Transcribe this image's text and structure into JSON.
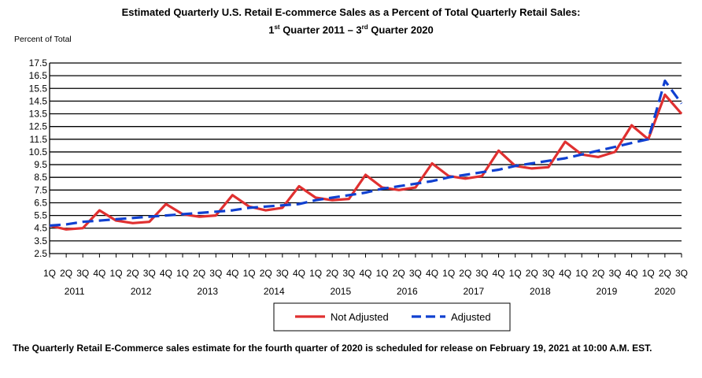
{
  "chart_data": {
    "type": "line",
    "title_line1": "Estimated Quarterly U.S. Retail E-commerce Sales as a Percent of Total Quarterly Retail Sales:",
    "title_line2": "1st Quarter 2011 – 3rd Quarter 2020",
    "ylabel": "Percent of Total",
    "ylim": [
      2.5,
      17.5
    ],
    "yticks": [
      2.5,
      3.5,
      4.5,
      5.5,
      6.5,
      7.5,
      8.5,
      9.5,
      10.5,
      11.5,
      12.5,
      13.5,
      14.5,
      15.5,
      16.5,
      17.5
    ],
    "grid": true,
    "quarter_labels": [
      "1Q",
      "2Q",
      "3Q",
      "4Q"
    ],
    "years": [
      "2011",
      "2012",
      "2013",
      "2014",
      "2015",
      "2016",
      "2017",
      "2018",
      "2019",
      "2020"
    ],
    "x": [
      "2011 Q1",
      "2011 Q2",
      "2011 Q3",
      "2011 Q4",
      "2012 Q1",
      "2012 Q2",
      "2012 Q3",
      "2012 Q4",
      "2013 Q1",
      "2013 Q2",
      "2013 Q3",
      "2013 Q4",
      "2014 Q1",
      "2014 Q2",
      "2014 Q3",
      "2014 Q4",
      "2015 Q1",
      "2015 Q2",
      "2015 Q3",
      "2015 Q4",
      "2016 Q1",
      "2016 Q2",
      "2016 Q3",
      "2016 Q4",
      "2017 Q1",
      "2017 Q2",
      "2017 Q3",
      "2017 Q4",
      "2018 Q1",
      "2018 Q2",
      "2018 Q3",
      "2018 Q4",
      "2019 Q1",
      "2019 Q2",
      "2019 Q3",
      "2019 Q4",
      "2020 Q1",
      "2020 Q2",
      "2020 Q3"
    ],
    "series": [
      {
        "name": "Not Adjusted",
        "color": "#e03030",
        "style": "solid",
        "values": [
          4.7,
          4.4,
          4.5,
          5.9,
          5.1,
          4.9,
          5.0,
          6.4,
          5.6,
          5.4,
          5.5,
          7.1,
          6.2,
          5.9,
          6.1,
          7.8,
          6.9,
          6.7,
          6.8,
          8.7,
          7.7,
          7.5,
          7.7,
          9.6,
          8.6,
          8.4,
          8.6,
          10.6,
          9.4,
          9.2,
          9.3,
          11.3,
          10.3,
          10.1,
          10.5,
          12.6,
          11.5,
          15.0,
          13.5
        ]
      },
      {
        "name": "Adjusted",
        "color": "#1040d0",
        "style": "dashed",
        "values": [
          4.7,
          4.8,
          5.0,
          5.1,
          5.2,
          5.3,
          5.4,
          5.5,
          5.6,
          5.7,
          5.8,
          5.9,
          6.1,
          6.2,
          6.3,
          6.4,
          6.7,
          6.9,
          7.1,
          7.3,
          7.6,
          7.8,
          8.0,
          8.2,
          8.5,
          8.7,
          8.9,
          9.1,
          9.4,
          9.6,
          9.8,
          10.0,
          10.3,
          10.6,
          10.9,
          11.2,
          11.5,
          16.1,
          14.3
        ]
      }
    ],
    "legend_placement": "bottom-center"
  },
  "footnote": "The Quarterly Retail E-Commerce sales estimate for the fourth quarter of 2020 is scheduled for release on February 19, 2021 at 10:00 A.M. EST."
}
